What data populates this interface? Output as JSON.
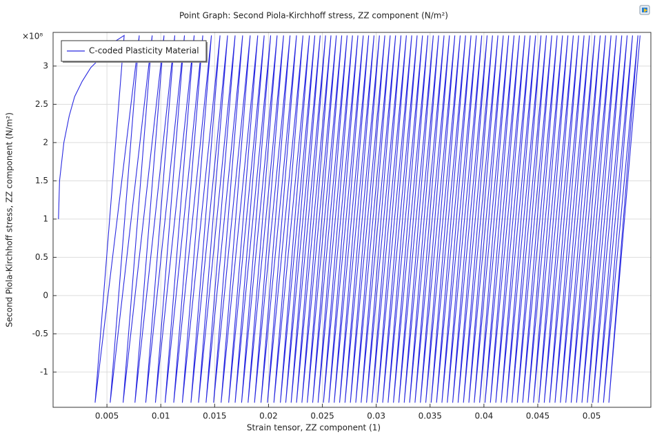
{
  "chart_data": {
    "type": "line",
    "title": "Point Graph: Second Piola-Kirchhoff stress, ZZ component (N/m²)",
    "xlabel": "Strain tensor, ZZ component (1)",
    "ylabel": "Second Piola-Kirchhoff stress, ZZ component (N/m²)",
    "y_multiplier": "×10⁸",
    "legend": "upper left",
    "grid": true,
    "xlim": [
      0,
      0.0555
    ],
    "ylim": [
      -1.46,
      3.44
    ],
    "xticks": [
      0.005,
      0.01,
      0.015,
      0.02,
      0.025,
      0.03,
      0.035,
      0.04,
      0.045,
      0.05
    ],
    "yticks": [
      -1,
      -0.5,
      0,
      0.5,
      1,
      1.5,
      2,
      2.5,
      3
    ],
    "x": [
      0.0005,
      0.0006,
      0.001,
      0.0015,
      0.002,
      0.0027,
      0.0035,
      0.0045,
      0.0055,
      0.0066,
      0.0039,
      0.008,
      0.0053,
      0.0092,
      0.0065,
      0.0103,
      0.0076,
      0.0113,
      0.0086,
      0.0122,
      0.0095,
      0.0131,
      0.0104,
      0.0139,
      0.0112,
      0.0147,
      0.012,
      0.0155,
      0.0128,
      0.0162,
      0.0135,
      0.0169,
      0.0142,
      0.0176,
      0.0149,
      0.0183,
      0.0156,
      0.019,
      0.0163,
      0.0196,
      0.0169,
      0.0202,
      0.0175,
      0.0208,
      0.0181,
      0.0214,
      0.0187,
      0.022,
      0.0193,
      0.0226,
      0.0199,
      0.0232,
      0.0205,
      0.0238,
      0.0211,
      0.0243,
      0.0216,
      0.0248,
      0.0221,
      0.0253,
      0.0226,
      0.0258,
      0.0231,
      0.0263,
      0.0236,
      0.0268,
      0.0241,
      0.0273,
      0.0246,
      0.0278,
      0.0251,
      0.0283,
      0.0256,
      0.0288,
      0.0261,
      0.0293,
      0.0266,
      0.0298,
      0.0271,
      0.0303,
      0.0276,
      0.0308,
      0.0281,
      0.0313,
      0.0286,
      0.0318,
      0.0291,
      0.0323,
      0.0296,
      0.0328,
      0.0301,
      0.0333,
      0.0306,
      0.0338,
      0.0311,
      0.0343,
      0.0316,
      0.0348,
      0.0321,
      0.0353,
      0.0326,
      0.0358,
      0.0331,
      0.0363,
      0.0336,
      0.0368,
      0.0341,
      0.0373,
      0.0346,
      0.0378,
      0.0351,
      0.0383,
      0.0356,
      0.0388,
      0.0361,
      0.0393,
      0.0366,
      0.0398,
      0.0371,
      0.0403,
      0.0376,
      0.0408,
      0.0381,
      0.0413,
      0.0386,
      0.0418,
      0.0391,
      0.0423,
      0.0396,
      0.0428,
      0.0401,
      0.0433,
      0.0406,
      0.0438,
      0.0411,
      0.0443,
      0.0416,
      0.0448,
      0.0421,
      0.0453,
      0.0426,
      0.0458,
      0.0431,
      0.0463,
      0.0436,
      0.0468,
      0.0441,
      0.0473,
      0.0446,
      0.0478,
      0.0451,
      0.0483,
      0.0456,
      0.0488,
      0.0461,
      0.0493,
      0.0466,
      0.0498,
      0.0471,
      0.0503,
      0.0476,
      0.0508,
      0.0481,
      0.0513,
      0.0486,
      0.0518,
      0.0491,
      0.0523,
      0.0496,
      0.0528,
      0.0501,
      0.0533,
      0.0506,
      0.0538,
      0.0511,
      0.0543,
      0.0516,
      0.0545
    ],
    "series": [
      {
        "name": "C-coded Plasticity Material",
        "color": "#2828e0",
        "values": [
          1,
          1.5,
          2,
          2.35,
          2.6,
          2.8,
          2.98,
          3.12,
          3.3,
          3.4,
          -1.4,
          3.4,
          -1.4,
          3.4,
          -1.4,
          3.4,
          -1.4,
          3.4,
          -1.4,
          3.4,
          -1.4,
          3.4,
          -1.4,
          3.4,
          -1.4,
          3.4,
          -1.4,
          3.4,
          -1.4,
          3.4,
          -1.4,
          3.4,
          -1.4,
          3.4,
          -1.4,
          3.4,
          -1.4,
          3.4,
          -1.4,
          3.4,
          -1.4,
          3.4,
          -1.4,
          3.4,
          -1.4,
          3.4,
          -1.4,
          3.4,
          -1.4,
          3.4,
          -1.4,
          3.4,
          -1.4,
          3.4,
          -1.4,
          3.4,
          -1.4,
          3.4,
          -1.4,
          3.4,
          -1.4,
          3.4,
          -1.4,
          3.4,
          -1.4,
          3.4,
          -1.4,
          3.4,
          -1.4,
          3.4,
          -1.4,
          3.4,
          -1.4,
          3.4,
          -1.4,
          3.4,
          -1.4,
          3.4,
          -1.4,
          3.4,
          -1.4,
          3.4,
          -1.4,
          3.4,
          -1.4,
          3.4,
          -1.4,
          3.4,
          -1.4,
          3.4,
          -1.4,
          3.4,
          -1.4,
          3.4,
          -1.4,
          3.4,
          -1.4,
          3.4,
          -1.4,
          3.4,
          -1.4,
          3.4,
          -1.4,
          3.4,
          -1.4,
          3.4,
          -1.4,
          3.4,
          -1.4,
          3.4,
          -1.4,
          3.4,
          -1.4,
          3.4,
          -1.4,
          3.4,
          -1.4,
          3.4,
          -1.4,
          3.4,
          -1.4,
          3.4,
          -1.4,
          3.4,
          -1.4,
          3.4,
          -1.4,
          3.4,
          -1.4,
          3.4,
          -1.4,
          3.4,
          -1.4,
          3.4,
          -1.4,
          3.4,
          -1.4,
          3.4,
          -1.4,
          3.4,
          -1.4,
          3.4,
          -1.4,
          3.4,
          -1.4,
          3.4,
          -1.4,
          3.4,
          -1.4,
          3.4,
          -1.4,
          3.4,
          -1.4,
          3.4,
          -1.4,
          3.4,
          -1.4,
          3.4,
          -1.4,
          3.4,
          -1.4,
          3.4,
          -1.4,
          3.4,
          -1.4,
          3.4,
          -1.4,
          3.4,
          -1.4,
          3.4,
          -1.4,
          3.4,
          -1.4,
          3.4,
          -1.4,
          3.4,
          -1.4,
          3.4
        ]
      }
    ]
  }
}
